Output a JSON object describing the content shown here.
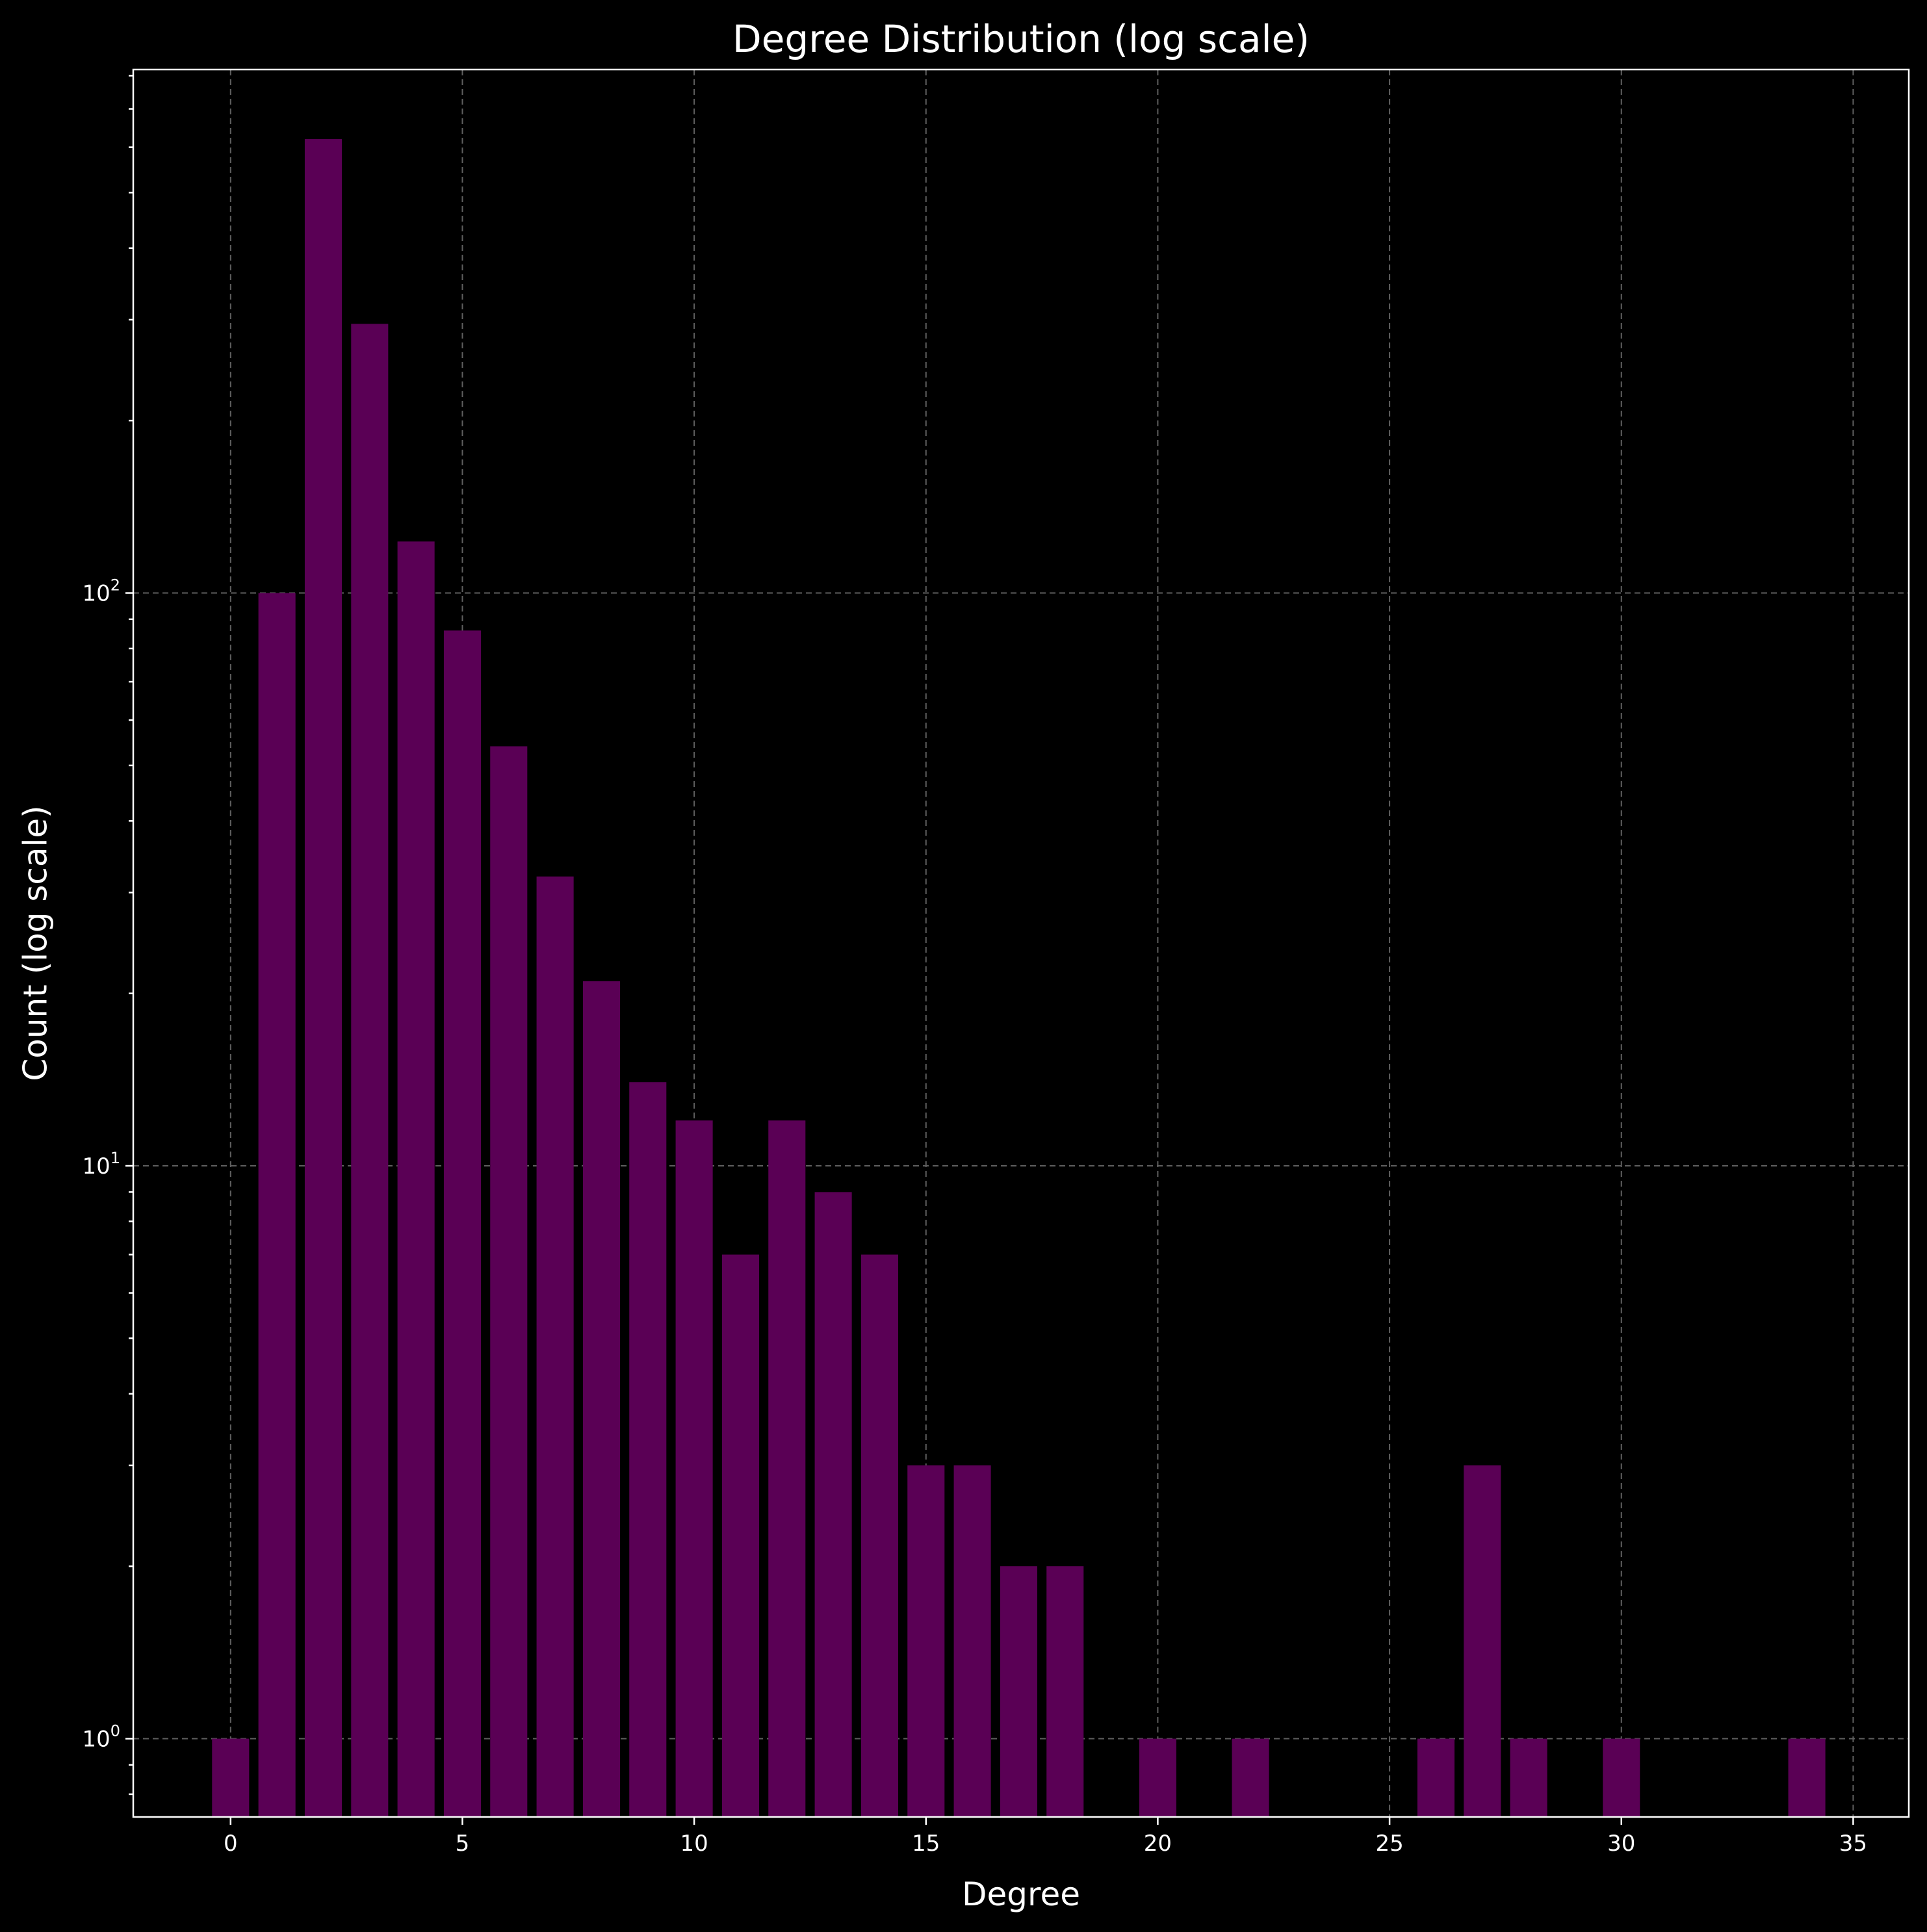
{
  "chart_data": {
    "type": "bar",
    "title": "Degree Distribution (log scale)",
    "xlabel": "Degree",
    "ylabel": "Count (log scale)",
    "x": [
      0,
      1,
      2,
      3,
      4,
      5,
      6,
      7,
      8,
      9,
      10,
      11,
      12,
      13,
      14,
      15,
      16,
      17,
      18,
      20,
      22,
      26,
      27,
      28,
      30,
      34
    ],
    "values": [
      1,
      100,
      620,
      295,
      123,
      86,
      54,
      32,
      21,
      14,
      12,
      7,
      12,
      9,
      7,
      3,
      3,
      2,
      2,
      1,
      1,
      1,
      3,
      1,
      1,
      1
    ],
    "xlim": [
      -2.1,
      36.2
    ],
    "ylim": [
      0.73,
      820
    ],
    "yscale": "log",
    "x_ticks": [
      0,
      5,
      10,
      15,
      20,
      25,
      30,
      35
    ],
    "y_ticks": [
      {
        "value": 1,
        "base": "10",
        "exp": "0"
      },
      {
        "value": 10,
        "base": "10",
        "exp": "1"
      },
      {
        "value": 100,
        "base": "10",
        "exp": "2"
      }
    ],
    "grid": true,
    "bar_color": "#5a0055",
    "background_color": "#000000",
    "text_color": "#ffffff",
    "grid_color": "#5f5f5f"
  }
}
